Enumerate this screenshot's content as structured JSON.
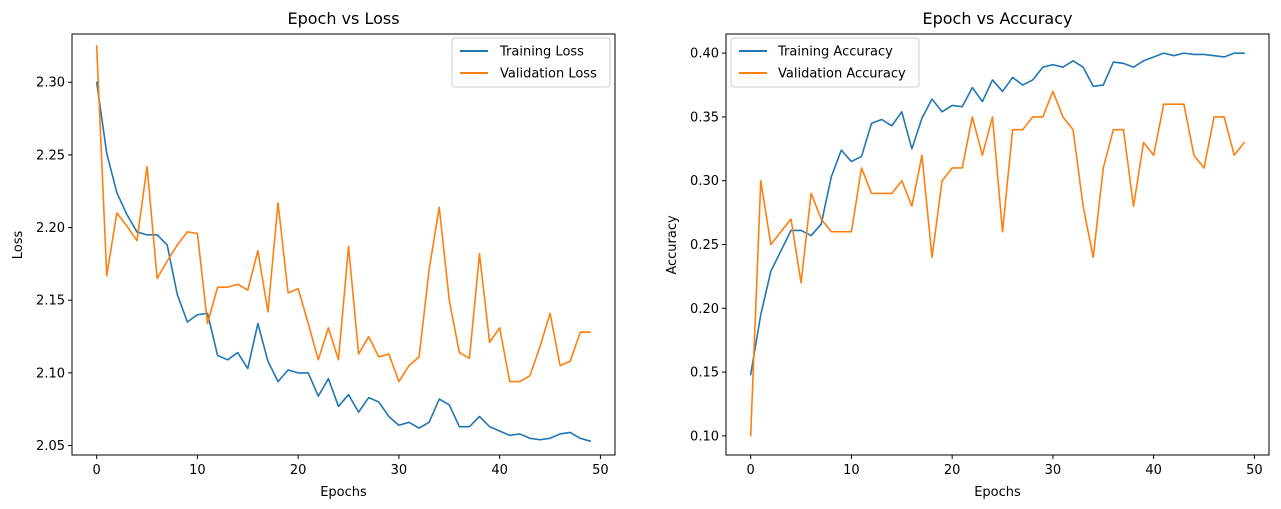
{
  "chart_data": [
    {
      "id": "loss",
      "type": "line",
      "title": "Epoch vs Loss",
      "xlabel": "Epochs",
      "ylabel": "Loss",
      "xlim": [
        -2.45,
        51.45
      ],
      "ylim": [
        2.0435,
        2.3332
      ],
      "xticks": [
        0,
        10,
        20,
        30,
        40,
        50
      ],
      "yticks": [
        2.05,
        2.1,
        2.15,
        2.2,
        2.25,
        2.3
      ],
      "ytick_labels": [
        "2.05",
        "2.10",
        "2.15",
        "2.20",
        "2.25",
        "2.30"
      ],
      "legend_position": "top-right",
      "x": [
        0,
        1,
        2,
        3,
        4,
        5,
        6,
        7,
        8,
        9,
        10,
        11,
        12,
        13,
        14,
        15,
        16,
        17,
        18,
        19,
        20,
        21,
        22,
        23,
        24,
        25,
        26,
        27,
        28,
        29,
        30,
        31,
        32,
        33,
        34,
        35,
        36,
        37,
        38,
        39,
        40,
        41,
        42,
        43,
        44,
        45,
        46,
        47,
        48,
        49
      ],
      "series": [
        {
          "name": "Training Loss",
          "color": "#1f77b4",
          "values": [
            2.3,
            2.251,
            2.224,
            2.209,
            2.197,
            2.195,
            2.195,
            2.188,
            2.154,
            2.135,
            2.14,
            2.141,
            2.112,
            2.109,
            2.114,
            2.103,
            2.134,
            2.108,
            2.094,
            2.102,
            2.1,
            2.1,
            2.084,
            2.096,
            2.077,
            2.085,
            2.073,
            2.083,
            2.08,
            2.07,
            2.064,
            2.066,
            2.062,
            2.066,
            2.082,
            2.078,
            2.063,
            2.063,
            2.07,
            2.063,
            2.06,
            2.057,
            2.058,
            2.055,
            2.054,
            2.055,
            2.058,
            2.059,
            2.055,
            2.053
          ]
        },
        {
          "name": "Validation Loss",
          "color": "#ff7f0e",
          "values": [
            2.325,
            2.167,
            2.21,
            2.201,
            2.191,
            2.242,
            2.165,
            2.177,
            2.188,
            2.197,
            2.196,
            2.134,
            2.159,
            2.159,
            2.161,
            2.157,
            2.184,
            2.142,
            2.217,
            2.155,
            2.158,
            2.134,
            2.109,
            2.131,
            2.109,
            2.187,
            2.113,
            2.125,
            2.111,
            2.113,
            2.094,
            2.105,
            2.111,
            2.171,
            2.214,
            2.15,
            2.114,
            2.11,
            2.182,
            2.121,
            2.131,
            2.094,
            2.094,
            2.098,
            2.118,
            2.141,
            2.105,
            2.108,
            2.128,
            2.128
          ]
        }
      ]
    },
    {
      "id": "acc",
      "type": "line",
      "title": "Epoch vs Accuracy",
      "xlabel": "Epochs",
      "ylabel": "Accuracy",
      "xlim": [
        -2.45,
        51.45
      ],
      "ylim": [
        0.085,
        0.415
      ],
      "xticks": [
        0,
        10,
        20,
        30,
        40,
        50
      ],
      "yticks": [
        0.1,
        0.15,
        0.2,
        0.25,
        0.3,
        0.35,
        0.4
      ],
      "ytick_labels": [
        "0.10",
        "0.15",
        "0.20",
        "0.25",
        "0.30",
        "0.35",
        "0.40"
      ],
      "legend_position": "top-left",
      "x": [
        0,
        1,
        2,
        3,
        4,
        5,
        6,
        7,
        8,
        9,
        10,
        11,
        12,
        13,
        14,
        15,
        16,
        17,
        18,
        19,
        20,
        21,
        22,
        23,
        24,
        25,
        26,
        27,
        28,
        29,
        30,
        31,
        32,
        33,
        34,
        35,
        36,
        37,
        38,
        39,
        40,
        41,
        42,
        43,
        44,
        45,
        46,
        47,
        48,
        49
      ],
      "series": [
        {
          "name": "Training Accuracy",
          "color": "#1f77b4",
          "values": [
            0.148,
            0.195,
            0.229,
            0.245,
            0.261,
            0.261,
            0.257,
            0.266,
            0.303,
            0.324,
            0.315,
            0.319,
            0.345,
            0.348,
            0.343,
            0.354,
            0.325,
            0.349,
            0.364,
            0.354,
            0.359,
            0.358,
            0.373,
            0.362,
            0.379,
            0.37,
            0.381,
            0.375,
            0.379,
            0.389,
            0.391,
            0.389,
            0.394,
            0.389,
            0.374,
            0.375,
            0.393,
            0.392,
            0.389,
            0.394,
            0.397,
            0.4,
            0.398,
            0.4,
            0.399,
            0.399,
            0.398,
            0.397,
            0.4,
            0.4
          ]
        },
        {
          "name": "Validation Accuracy",
          "color": "#ff7f0e",
          "values": [
            0.1,
            0.3,
            0.25,
            0.26,
            0.27,
            0.22,
            0.29,
            0.27,
            0.26,
            0.26,
            0.26,
            0.31,
            0.29,
            0.29,
            0.29,
            0.3,
            0.28,
            0.32,
            0.24,
            0.3,
            0.31,
            0.31,
            0.35,
            0.32,
            0.35,
            0.26,
            0.34,
            0.34,
            0.35,
            0.35,
            0.37,
            0.35,
            0.34,
            0.28,
            0.24,
            0.31,
            0.34,
            0.34,
            0.28,
            0.33,
            0.32,
            0.36,
            0.36,
            0.36,
            0.32,
            0.31,
            0.35,
            0.35,
            0.32,
            0.33
          ]
        }
      ]
    }
  ]
}
